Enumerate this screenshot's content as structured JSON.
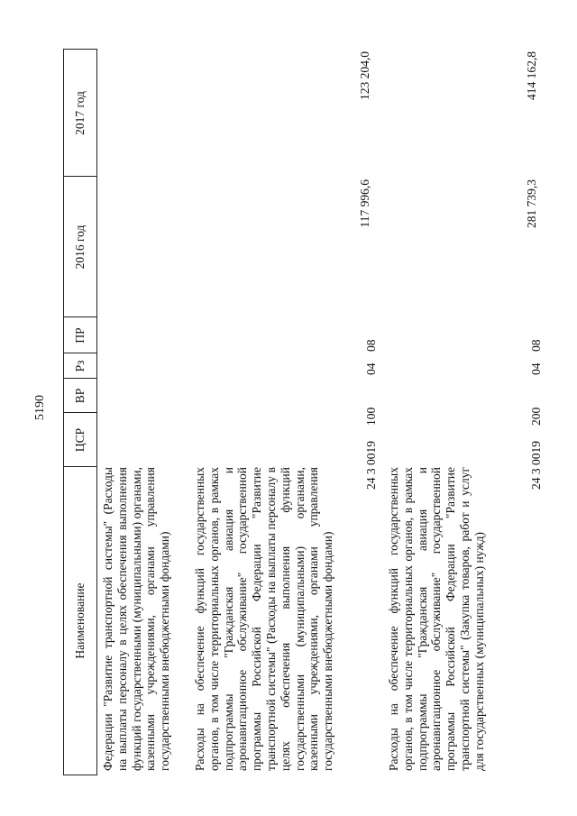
{
  "page_number": "5190",
  "header": {
    "name": "Наименование",
    "csr": "ЦСР",
    "vr": "ВР",
    "rz": "Рз",
    "pr": "ПР",
    "y2016": "2016 год",
    "y2017": "2017 год"
  },
  "rows": [
    {
      "name": "Федерации \"Развитие транспортной системы\" (Расходы на выплаты персоналу в целях обеспечения выполнения функций государственными (муниципальными) органами, казенными учреждениями, органами управления государственными внебюджетными фондами)"
    },
    {
      "name": "Расходы на обеспечение функций государственных органов, в том числе территориальных органов, в рамках подпрограммы \"Гражданская авиация и аэронавигационное обслуживание\" государственной программы Российской Федерации \"Развитие транспортной системы\" (Расходы на выплаты персоналу в целях обеспечения выполнения функций государственными (муниципальными) органами, казенными учреждениями, органами управления государственными внебюджетными фондами)",
      "csr": "24 3 0019",
      "vr": "100",
      "rz": "04",
      "pr": "08",
      "y2016": "117 996,6",
      "y2017": "123 204,0"
    },
    {
      "name": "Расходы на обеспечение функций государственных органов, в том числе территориальных органов, в рамках подпрограммы \"Гражданская авиация и аэронавигационное обслуживание\" государственной программы Российской Федерации \"Развитие транспортной системы\" (Закупка товаров, работ и услуг для государственных (муниципальных) нужд)",
      "csr": "24 3 0019",
      "vr": "200",
      "rz": "04",
      "pr": "08",
      "y2016": "281 739,3",
      "y2017": "414 162,8"
    }
  ]
}
